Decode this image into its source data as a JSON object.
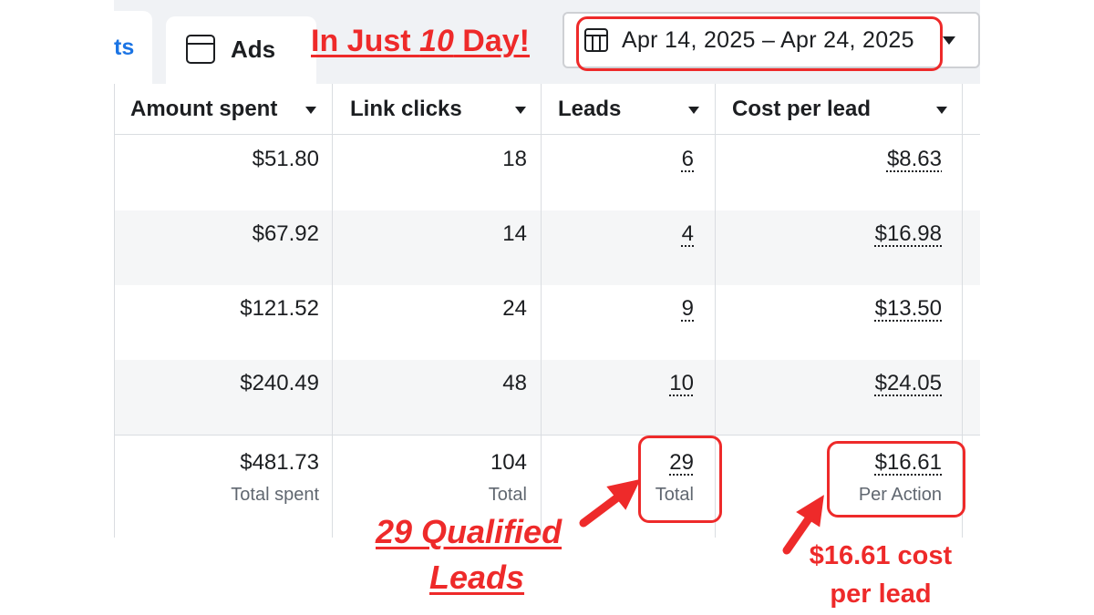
{
  "tabs": {
    "prev_partial_label": "ts",
    "ads_label": "Ads",
    "ads_icon": "ad-preview-icon"
  },
  "date_range": {
    "icon": "calendar-icon",
    "label": "Apr 14, 2025 – Apr 24, 2025"
  },
  "table": {
    "columns": [
      "Amount spent",
      "Link clicks",
      "Leads",
      "Cost per lead"
    ],
    "rows": [
      {
        "amount_spent": "$51.80",
        "link_clicks": "18",
        "leads": "6",
        "cost_per_lead": "$8.63"
      },
      {
        "amount_spent": "$67.92",
        "link_clicks": "14",
        "leads": "4",
        "cost_per_lead": "$16.98"
      },
      {
        "amount_spent": "$121.52",
        "link_clicks": "24",
        "leads": "9",
        "cost_per_lead": "$13.50"
      },
      {
        "amount_spent": "$240.49",
        "link_clicks": "48",
        "leads": "10",
        "cost_per_lead": "$24.05"
      }
    ],
    "totals": {
      "amount_spent": {
        "value": "$481.73",
        "label": "Total spent"
      },
      "link_clicks": {
        "value": "104",
        "label": "Total"
      },
      "leads": {
        "value": "29",
        "label": "Total"
      },
      "cost_per_lead": {
        "value": "$16.61",
        "label": "Per Action"
      }
    }
  },
  "annotations": {
    "headline_prefix": "In Just ",
    "headline_number": "10",
    "headline_suffix": " Day!",
    "leads_callout_line1": "29 Qualified",
    "leads_callout_line2": "Leads",
    "cost_callout_line1": "$16.61 cost",
    "cost_callout_line2": "per lead",
    "accent_color": "#ee2a2a"
  }
}
